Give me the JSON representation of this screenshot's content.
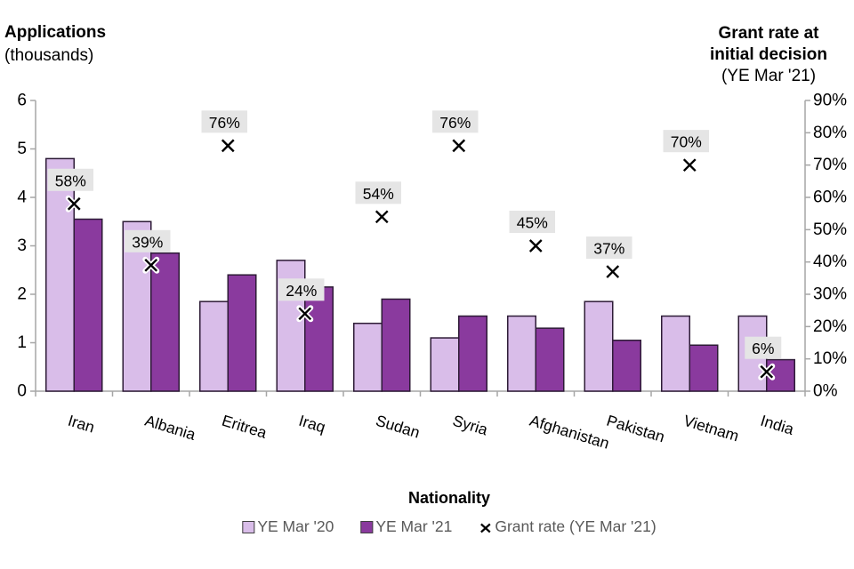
{
  "titles": {
    "left": {
      "line1": "Applications",
      "line2": "(thousands)"
    },
    "right": {
      "line1": "Grant rate at",
      "line2": "initial decision",
      "line3": "(YE Mar '21)"
    }
  },
  "chart_data": {
    "type": "bar",
    "categories": [
      "Iran",
      "Albania",
      "Eritrea",
      "Iraq",
      "Sudan",
      "Syria",
      "Afghanistan",
      "Pakistan",
      "Vietnam",
      "India"
    ],
    "series": [
      {
        "name": "YE Mar '20",
        "values": [
          4.8,
          3.5,
          1.85,
          2.7,
          1.4,
          1.1,
          1.55,
          1.85,
          1.55,
          1.55
        ]
      },
      {
        "name": "YE Mar '21",
        "values": [
          3.55,
          2.85,
          2.4,
          2.15,
          1.9,
          1.55,
          1.3,
          1.05,
          0.95,
          0.65
        ]
      }
    ],
    "scatter_series": {
      "name": "Grant rate (YE Mar '21)",
      "axis": "right",
      "values": [
        58,
        39,
        76,
        24,
        54,
        76,
        45,
        37,
        70,
        6
      ],
      "labels": [
        "58%",
        "39%",
        "76%",
        "24%",
        "54%",
        "76%",
        "45%",
        "37%",
        "70%",
        "6%"
      ]
    },
    "left_axis": {
      "min": 0,
      "max": 6,
      "step": 1,
      "tick_labels": [
        "0",
        "1",
        "2",
        "3",
        "4",
        "5",
        "6"
      ]
    },
    "right_axis": {
      "min": 0,
      "max": 90,
      "step": 10,
      "suffix": "%",
      "tick_labels": [
        "0%",
        "10%",
        "20%",
        "30%",
        "40%",
        "50%",
        "60%",
        "70%",
        "80%",
        "90%"
      ]
    },
    "xlabel": "Nationality",
    "legend": [
      {
        "label": "YE Mar '20",
        "swatch": "light"
      },
      {
        "label": "YE Mar '21",
        "swatch": "dark"
      },
      {
        "label": "Grant rate (YE Mar '21)",
        "swatch": "x"
      }
    ],
    "grid": false,
    "legend_position": "bottom"
  },
  "colors": {
    "bar_light": "#d9bde9",
    "bar_dark": "#8a3a9e",
    "bar_border": "#2d1b36",
    "axis_line": "#a6a6a6",
    "label_bg": "#e5e5e5",
    "marker": "#000000",
    "legend_text": "#595959"
  }
}
